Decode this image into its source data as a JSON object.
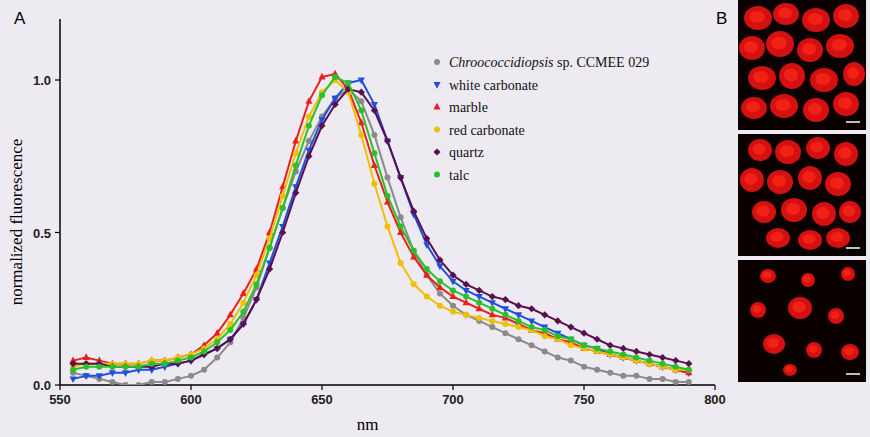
{
  "chart_data": {
    "type": "line",
    "x_label": "nm",
    "y_label": "normalized fluorescence",
    "annotations": [
      "A",
      "B"
    ],
    "xlim": [
      550,
      800
    ],
    "xticks": [
      550,
      600,
      650,
      700,
      750,
      800
    ],
    "ylim": [
      0,
      1.2
    ],
    "yticks": [
      {
        "value": 0,
        "label": "0.0"
      },
      {
        "value": 0.5,
        "label": "0.5"
      },
      {
        "value": 1.0,
        "label": "1.0"
      }
    ],
    "grid": false,
    "legend": "top-right",
    "x": [
      555,
      560,
      565,
      570,
      575,
      580,
      585,
      590,
      595,
      600,
      605,
      610,
      615,
      620,
      625,
      630,
      635,
      640,
      645,
      650,
      655,
      660,
      665,
      670,
      675,
      680,
      685,
      690,
      695,
      700,
      705,
      710,
      715,
      720,
      725,
      730,
      735,
      740,
      745,
      750,
      755,
      760,
      765,
      770,
      775,
      780,
      785,
      790
    ],
    "series": [
      {
        "name": "Chroococcidiopsis sp. CCMEE 029",
        "color": "#8a8a8a",
        "marker": "circle",
        "line_style": "solid",
        "values": [
          0.04,
          0.03,
          0.02,
          0.01,
          0,
          0,
          0.01,
          0.01,
          0.02,
          0.03,
          0.05,
          0.09,
          0.14,
          0.22,
          0.32,
          0.45,
          0.58,
          0.7,
          0.8,
          0.88,
          0.94,
          0.97,
          0.93,
          0.82,
          0.68,
          0.55,
          0.44,
          0.36,
          0.3,
          0.26,
          0.23,
          0.21,
          0.19,
          0.17,
          0.15,
          0.13,
          0.11,
          0.09,
          0.08,
          0.06,
          0.05,
          0.04,
          0.03,
          0.03,
          0.02,
          0.02,
          0.01,
          0.01
        ]
      },
      {
        "name": "white carbonate",
        "color": "#1f4fe0",
        "marker": "triangle-down",
        "line_style": "solid",
        "values": [
          0.02,
          0.03,
          0.03,
          0.04,
          0.04,
          0.05,
          0.05,
          0.06,
          0.07,
          0.08,
          0.1,
          0.12,
          0.15,
          0.2,
          0.28,
          0.4,
          0.52,
          0.65,
          0.77,
          0.87,
          0.94,
          0.99,
          1.0,
          0.92,
          0.8,
          0.68,
          0.56,
          0.46,
          0.39,
          0.34,
          0.31,
          0.29,
          0.27,
          0.25,
          0.23,
          0.21,
          0.19,
          0.17,
          0.15,
          0.13,
          0.12,
          0.1,
          0.09,
          0.08,
          0.07,
          0.06,
          0.05,
          0.04
        ]
      },
      {
        "name": "marble",
        "color": "#e8201e",
        "marker": "triangle",
        "line_style": "solid",
        "values": [
          0.08,
          0.09,
          0.08,
          0.07,
          0.07,
          0.07,
          0.08,
          0.08,
          0.09,
          0.1,
          0.13,
          0.17,
          0.23,
          0.3,
          0.38,
          0.5,
          0.65,
          0.8,
          0.93,
          1.01,
          1.02,
          0.97,
          0.86,
          0.72,
          0.6,
          0.5,
          0.42,
          0.36,
          0.32,
          0.29,
          0.27,
          0.25,
          0.23,
          0.22,
          0.2,
          0.18,
          0.17,
          0.15,
          0.14,
          0.12,
          0.11,
          0.1,
          0.09,
          0.08,
          0.07,
          0.06,
          0.05,
          0.04
        ]
      },
      {
        "name": "red carbonate",
        "color": "#f0c000",
        "marker": "circle",
        "line_style": "solid",
        "values": [
          0.06,
          0.07,
          0.07,
          0.07,
          0.07,
          0.07,
          0.08,
          0.08,
          0.09,
          0.1,
          0.12,
          0.15,
          0.2,
          0.27,
          0.36,
          0.48,
          0.62,
          0.76,
          0.88,
          0.96,
          1.0,
          0.96,
          0.82,
          0.66,
          0.52,
          0.4,
          0.33,
          0.29,
          0.26,
          0.24,
          0.23,
          0.22,
          0.21,
          0.2,
          0.19,
          0.18,
          0.16,
          0.15,
          0.13,
          0.12,
          0.11,
          0.1,
          0.09,
          0.08,
          0.07,
          0.06,
          0.05,
          0.05
        ]
      },
      {
        "name": "quartz",
        "color": "#5a1050",
        "marker": "diamond",
        "line_style": "solid",
        "values": [
          0.07,
          0.07,
          0.07,
          0.06,
          0.06,
          0.06,
          0.06,
          0.07,
          0.07,
          0.08,
          0.1,
          0.12,
          0.15,
          0.2,
          0.28,
          0.38,
          0.5,
          0.63,
          0.75,
          0.85,
          0.92,
          0.97,
          0.96,
          0.9,
          0.8,
          0.68,
          0.57,
          0.48,
          0.41,
          0.36,
          0.33,
          0.31,
          0.29,
          0.28,
          0.26,
          0.25,
          0.23,
          0.21,
          0.19,
          0.17,
          0.15,
          0.13,
          0.12,
          0.11,
          0.1,
          0.09,
          0.08,
          0.07
        ]
      },
      {
        "name": "talc",
        "color": "#2ac02a",
        "marker": "circle",
        "line_style": "solid",
        "values": [
          0.05,
          0.06,
          0.06,
          0.06,
          0.06,
          0.06,
          0.07,
          0.07,
          0.08,
          0.09,
          0.11,
          0.14,
          0.18,
          0.24,
          0.33,
          0.45,
          0.58,
          0.72,
          0.85,
          0.95,
          1.01,
          0.99,
          0.9,
          0.76,
          0.62,
          0.52,
          0.44,
          0.38,
          0.34,
          0.31,
          0.29,
          0.27,
          0.25,
          0.23,
          0.21,
          0.19,
          0.18,
          0.16,
          0.15,
          0.13,
          0.12,
          0.11,
          0.1,
          0.09,
          0.08,
          0.07,
          0.06,
          0.05
        ]
      }
    ]
  }
}
